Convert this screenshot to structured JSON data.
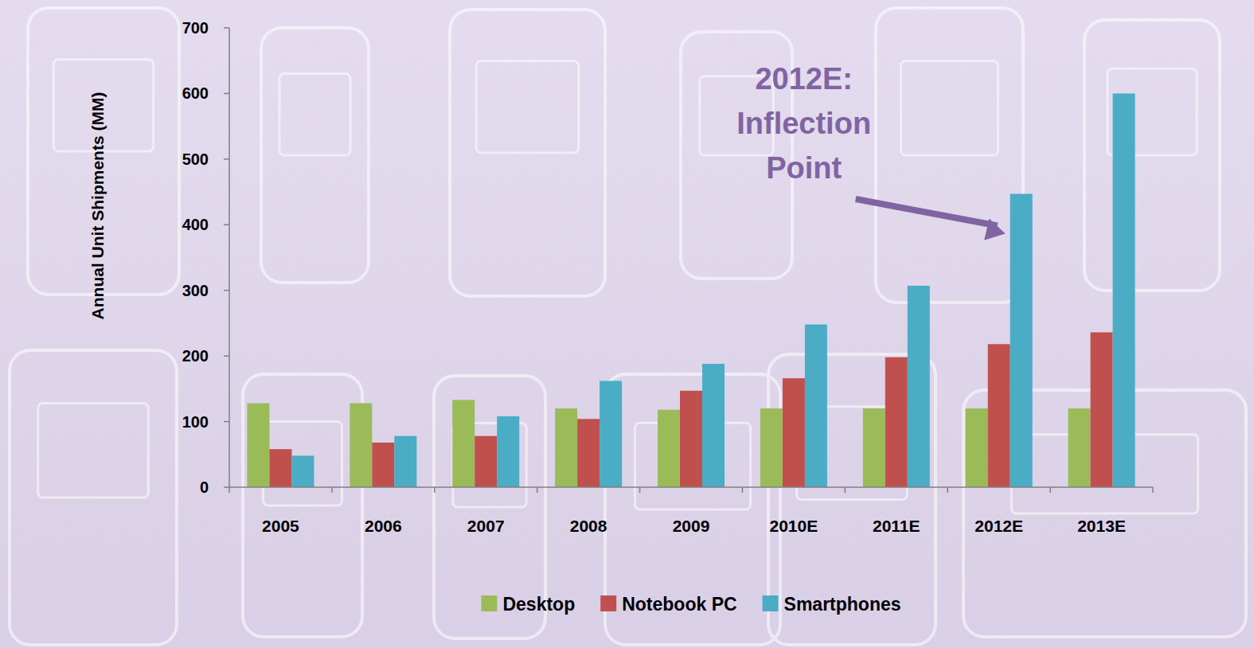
{
  "chart_data": {
    "type": "bar",
    "y_label": "Annual Unit Shipments (MM)",
    "categories": [
      "2005",
      "2006",
      "2007",
      "2008",
      "2009",
      "2010E",
      "2011E",
      "2012E",
      "2013E"
    ],
    "series": [
      {
        "name": "Desktop",
        "color": "#9bbb59",
        "values": [
          128,
          128,
          133,
          120,
          118,
          120,
          120,
          120,
          120
        ]
      },
      {
        "name": "Notebook PC",
        "color": "#c0504d",
        "values": [
          58,
          68,
          78,
          104,
          147,
          166,
          198,
          218,
          236
        ]
      },
      {
        "name": "Smartphones",
        "color": "#4bacc6",
        "values": [
          48,
          78,
          108,
          162,
          188,
          248,
          307,
          447,
          600
        ]
      }
    ],
    "ylim": [
      0,
      700
    ],
    "yticks": [
      0,
      100,
      200,
      300,
      400,
      500,
      600,
      700
    ],
    "grid": false,
    "legend": "bottom",
    "annotations": [
      {
        "text": "2012E: Inflection Point",
        "x": "2012E"
      }
    ]
  }
}
